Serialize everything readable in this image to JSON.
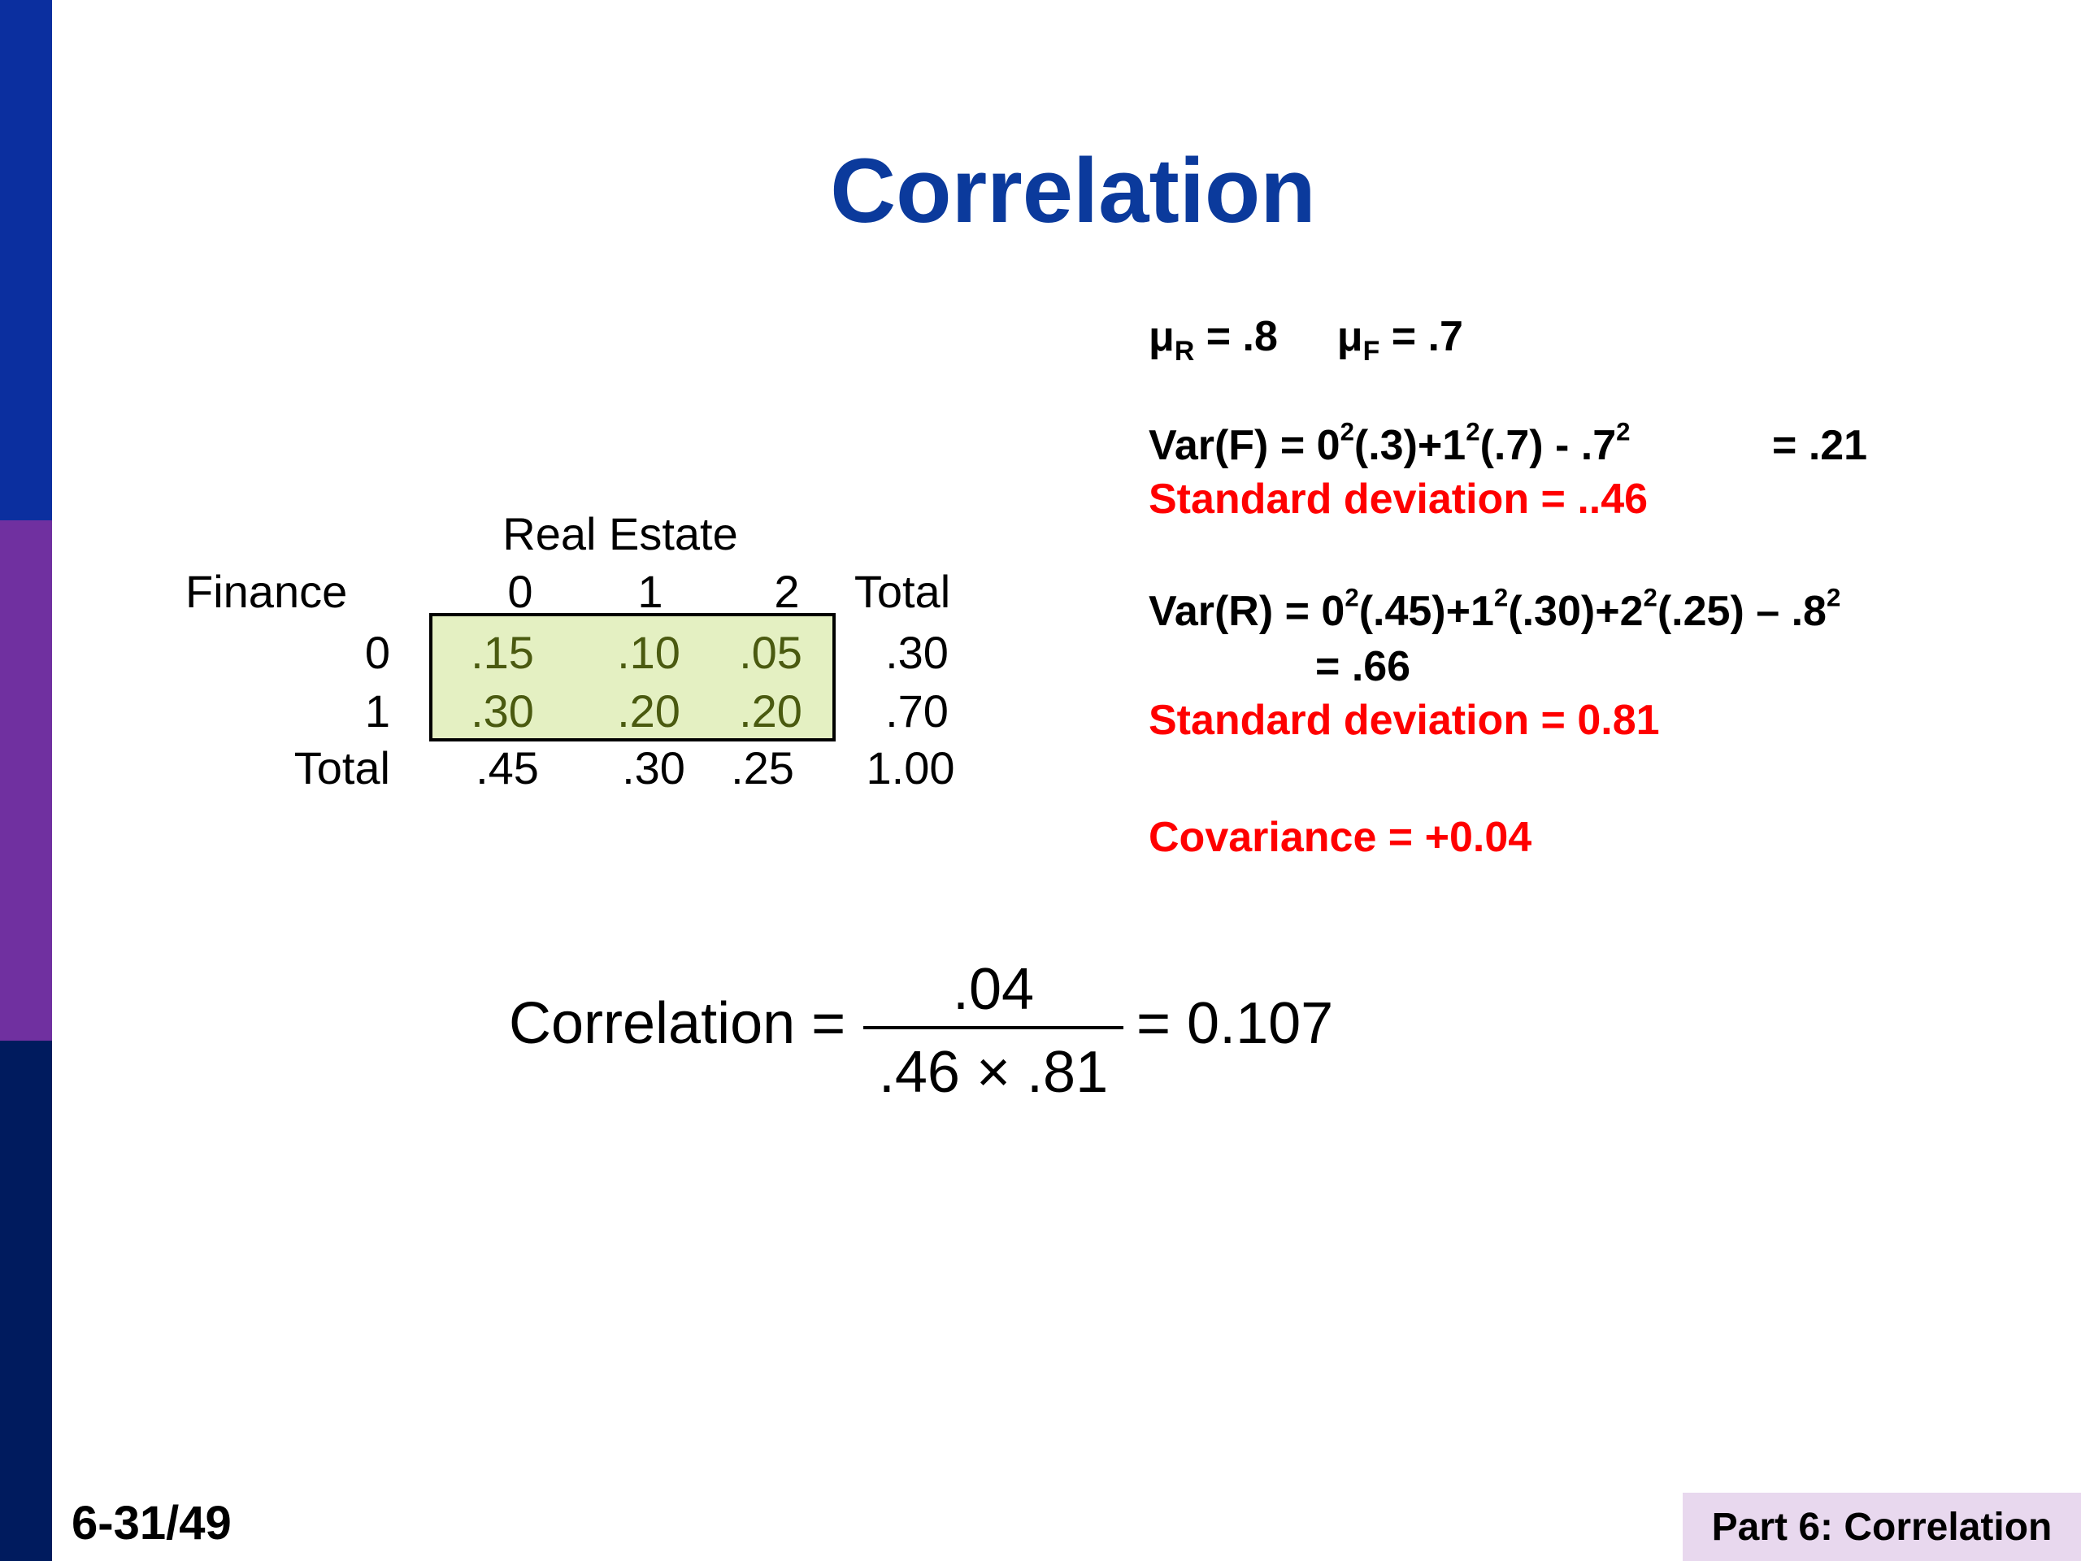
{
  "colors": {
    "bar_top": "#0b2f9f",
    "bar_mid": "#7030a0",
    "bar_bottom": "#001b5e",
    "title": "#0b3a9c",
    "highlight": "#e4f0c2",
    "highlight_text": "#4a5a10",
    "red": "#ff0000",
    "footer_box": "#e8d8ee"
  },
  "slide": {
    "title": "Correlation"
  },
  "table": {
    "header": "Real Estate",
    "row_label": "Finance",
    "columns": [
      "0",
      "1",
      "2",
      "Total"
    ],
    "rows": [
      {
        "label": "0",
        "cells": [
          ".15",
          ".10",
          ".05"
        ],
        "total": ".30"
      },
      {
        "label": "1",
        "cells": [
          ".30",
          ".20",
          ".20"
        ],
        "total": ".70"
      }
    ],
    "total_row": {
      "label": "Total",
      "cells": [
        ".45",
        ".30",
        ".25"
      ],
      "total": "1.00"
    }
  },
  "formulas": {
    "mu_r": {
      "sym": "μ",
      "sub": "R",
      "rest": " = .8"
    },
    "mu_f": {
      "sym": "μ",
      "sub": "F",
      "rest": " = .7"
    },
    "var_f": {
      "prefix": "Var(F) =  0",
      "p1": "(.3)+1",
      "p2": "(.7) - .7",
      "result": "= .21",
      "exp": "2"
    },
    "sd_f": "Standard deviation = ..46",
    "var_r": {
      "prefix": "Var(R)   =  0",
      "p1": "(.45)+1",
      "p2": "(.30)+2",
      "p3": "(.25)  – .8",
      "exp": "2"
    },
    "var_r_result": "=  .66",
    "sd_r": "Standard deviation = 0.81",
    "covariance": "Covariance   =  +0.04"
  },
  "correlation": {
    "label": "Correlation =",
    "numerator": ".04",
    "denominator": ".46  ×  .81",
    "result": "= 0.107"
  },
  "footer": {
    "page": "6-31/49",
    "section": "Part 6: Correlation"
  }
}
